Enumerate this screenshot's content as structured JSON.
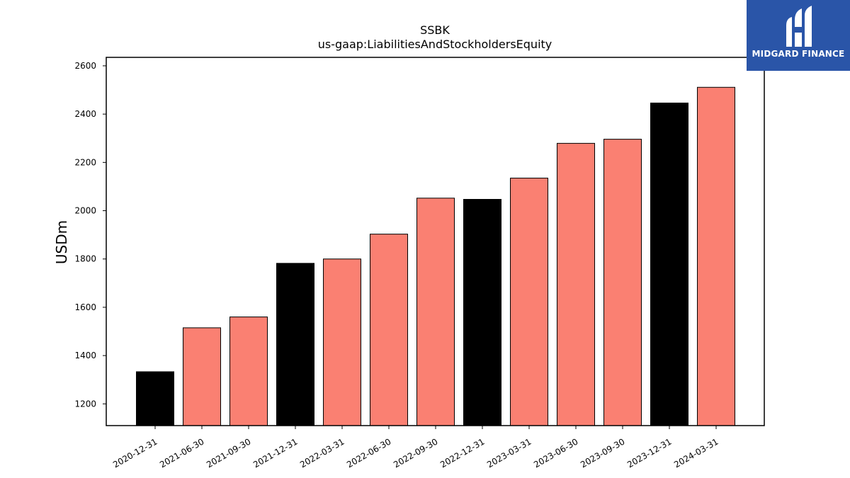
{
  "chart_data": {
    "type": "bar",
    "title": "SSBK",
    "subtitle": "us-gaap:LiabilitiesAndStockholdersEquity",
    "xlabel": "",
    "ylabel": "USDm",
    "ylim": [
      1110,
      2635
    ],
    "yticks": [
      1200,
      1400,
      1600,
      1800,
      2000,
      2200,
      2400,
      2600
    ],
    "categories": [
      "2020-12-31",
      "2021-06-30",
      "2021-09-30",
      "2021-12-31",
      "2022-03-31",
      "2022-06-30",
      "2022-09-30",
      "2022-12-31",
      "2023-03-31",
      "2023-06-30",
      "2023-09-30",
      "2023-12-31",
      "2024-03-31"
    ],
    "values": [
      1333,
      1515,
      1560,
      1782,
      1800,
      1903,
      2052,
      2047,
      2135,
      2279,
      2296,
      2446,
      2511
    ],
    "bar_colors": [
      "#000000",
      "#fa8072",
      "#fa8072",
      "#000000",
      "#fa8072",
      "#fa8072",
      "#fa8072",
      "#000000",
      "#fa8072",
      "#fa8072",
      "#fa8072",
      "#000000",
      "#fa8072"
    ],
    "grid": false,
    "legend": "none"
  },
  "logo": {
    "text": "MIDGARD FINANCE",
    "background": "#2a55a8"
  }
}
